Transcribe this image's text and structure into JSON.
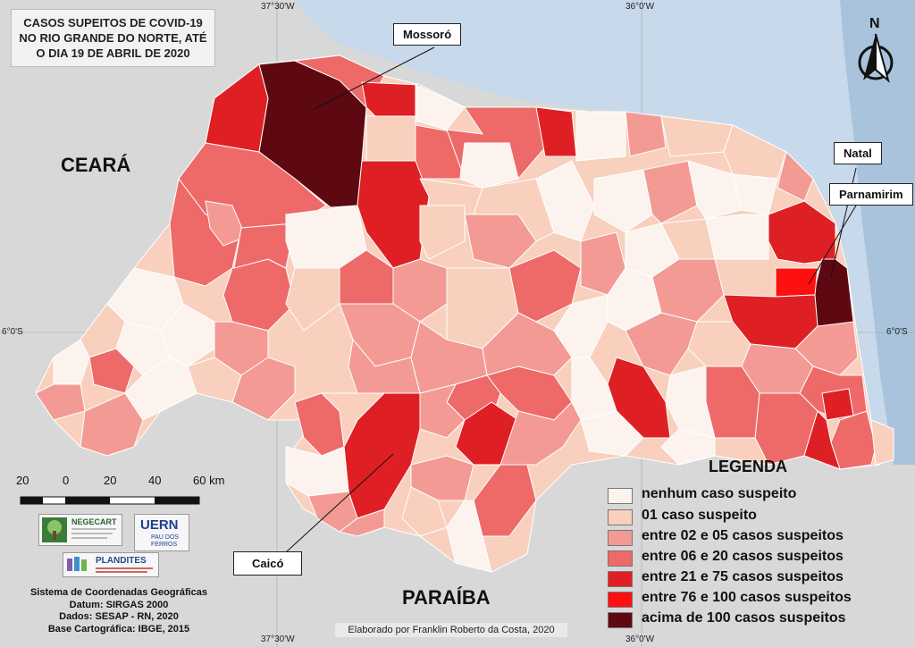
{
  "title": "CASOS SUPEITOS DE COVID-19 NO RIO GRANDE DO NORTE, ATÉ O DIA 19 DE ABRIL DE 2020",
  "states": {
    "ceara": "CEARÁ",
    "paraiba": "PARAÍBA"
  },
  "cities": {
    "mossoro": "Mossoró",
    "natal": "Natal",
    "parnamirim": "Parnamirim",
    "caico": "Caicó"
  },
  "coords": {
    "top_left": "37°30'W",
    "top_right": "36°0'W",
    "bottom_left": "37°30'W",
    "bottom_right": "36°0'W",
    "left": "6°0'S",
    "right": "6°0'S"
  },
  "north_label": "N",
  "scale": {
    "labels": [
      "20",
      "0",
      "20",
      "40",
      "60 km"
    ]
  },
  "legend": {
    "title": "LEGENDA",
    "items": [
      {
        "label": "nenhum caso suspeito",
        "color": "#fdf3ee"
      },
      {
        "label": "01 caso suspeito",
        "color": "#f8d0bd"
      },
      {
        "label": "entre 02 e 05 casos suspeitos",
        "color": "#f39a95"
      },
      {
        "label": "entre 06 e 20 casos suspeitos",
        "color": "#ee6a69"
      },
      {
        "label": "entre 21 e 75 casos suspeitos",
        "color": "#de2025"
      },
      {
        "label": "entre 76 e 100 casos suspeitos",
        "color": "#ff1010"
      },
      {
        "label": "acima de 100 casos suspeitos",
        "color": "#5e0812"
      }
    ]
  },
  "logos": {
    "negecart": "NEGECART",
    "uern": "UERN",
    "uern_sub": "PAU DOS FERROS",
    "plandites": "PLANDITES"
  },
  "info": {
    "line1": "Sistema de Coordenadas Geográficas",
    "line2": "Datum: SIRGAS 2000",
    "line3": "Dados: SESAP - RN, 2020",
    "line4": "Base Cartográfica: IBGE, 2015"
  },
  "credit": "Elaborado por Franklin Roberto da Costa, 2020",
  "colors": {
    "land_bg": "#d8d8d8",
    "ocean": "#c7d9ea",
    "ocean_shelf": "#a9c3dc"
  }
}
